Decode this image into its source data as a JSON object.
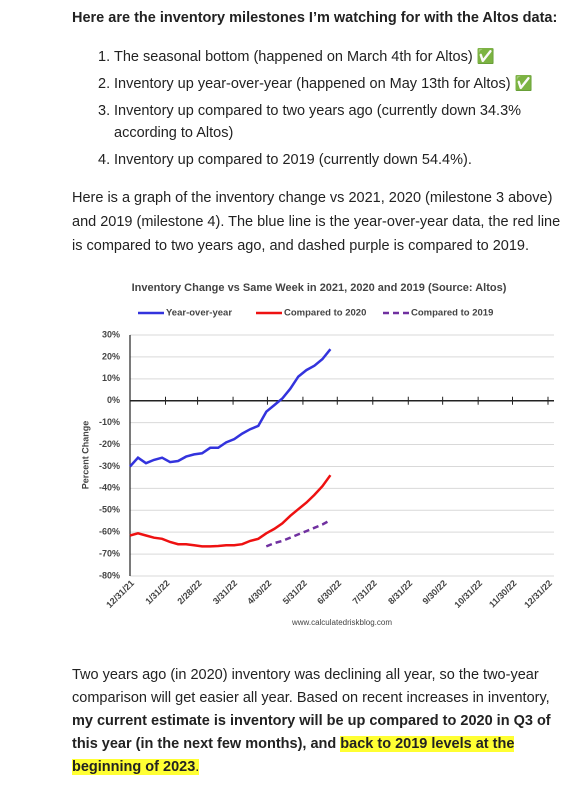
{
  "heading": "Here are the inventory milestones I’m watching for with the Altos data:",
  "list": [
    {
      "marker": "1.",
      "text": "The seasonal bottom (happened on March 4th for Altos) ✅"
    },
    {
      "marker": "2.",
      "text": "Inventory up year-over-year (happened on May 13th for Altos) ✅"
    },
    {
      "marker": "3.",
      "text": "Inventory up compared to two years ago (currently down 34.3% according to Altos)"
    },
    {
      "marker": "4.",
      "text": "Inventory up compared to 2019 (currently down 54.4%)."
    }
  ],
  "paragraph": "Here is a graph of the inventory change vs 2021, 2020 (milestone 3 above) and 2019 (milestone 4). The blue line is the year-over-year data, the red line is compared to two years ago, and dashed purple is compared to 2019.",
  "closing": [
    "Two years ago (in 2020) inventory was declining all year, so the two-year comparison will get easier all year.   Based on recent increases in inventory, ",
    "my current estimate is inventory will be up compared to 2020 in Q3 of this year (in the next few months), and ",
    "back to 2019 levels at the beginning of 2023",
    "."
  ],
  "chart_data": {
    "type": "line",
    "title": "Inventory Change vs Same Week in 2021, 2020 and 2019 (Source: Altos)",
    "y_label": "Percent Change",
    "source": "www.calculatedriskblog.com",
    "x": [
      "12/31/21",
      "1/7/22",
      "1/14/22",
      "1/21/22",
      "1/28/22",
      "2/4/22",
      "2/11/22",
      "2/18/22",
      "2/25/22",
      "3/4/22",
      "3/11/22",
      "3/18/22",
      "3/25/22",
      "4/1/22",
      "4/8/22",
      "4/15/22",
      "4/22/22",
      "4/29/22",
      "5/6/22",
      "5/13/22",
      "5/20/22",
      "5/27/22",
      "6/3/22",
      "6/10/22",
      "6/17/22",
      "6/24/22"
    ],
    "series": [
      {
        "name": "Year-over-year",
        "color": "#3333dd",
        "dashed": false,
        "values": [
          -30,
          -26,
          -28.5,
          -27,
          -26,
          -28,
          -27.5,
          -25.5,
          -24.5,
          -24,
          -21.5,
          -21.5,
          -19,
          -17.5,
          -15,
          -13,
          -11.5,
          -5,
          -2,
          1,
          5.5,
          11,
          14,
          16,
          19,
          23.5
        ]
      },
      {
        "name": "Compared to 2020",
        "color": "#ee1111",
        "dashed": false,
        "values": [
          -61.5,
          -60.5,
          -61.5,
          -62.5,
          -63,
          -64.5,
          -65.5,
          -65.5,
          -66,
          -66.5,
          -66.5,
          -66.3,
          -66,
          -66,
          -65.5,
          -64,
          -63,
          -60.5,
          -58.5,
          -56,
          -52.5,
          -49.5,
          -46.5,
          -43,
          -39,
          -34
        ]
      },
      {
        "name": "Compared to 2019",
        "color": "#7030a0",
        "dashed": true,
        "values": [
          null,
          null,
          null,
          null,
          null,
          null,
          null,
          null,
          null,
          null,
          null,
          null,
          null,
          null,
          null,
          null,
          null,
          -66.5,
          -65,
          -64,
          -62.5,
          -61,
          -59.5,
          -58,
          -56.5,
          -54.5
        ]
      }
    ],
    "xlim": [
      "12/31/21",
      "12/31/22"
    ],
    "xticks": [
      "12/31/21",
      "1/31/22",
      "2/28/22",
      "3/31/22",
      "4/30/22",
      "5/31/22",
      "6/30/22",
      "7/31/22",
      "8/31/22",
      "9/30/22",
      "10/31/22",
      "11/30/22",
      "12/31/22"
    ],
    "ylim": [
      -80,
      30
    ],
    "yticks": [
      {
        "value": 30,
        "label": "30%"
      },
      {
        "value": 20,
        "label": "20%"
      },
      {
        "value": 10,
        "label": "10%"
      },
      {
        "value": 0,
        "label": "0%"
      },
      {
        "value": -10,
        "label": "-10%"
      },
      {
        "value": -20,
        "label": "-20%"
      },
      {
        "value": -30,
        "label": "-30%"
      },
      {
        "value": -40,
        "label": "-40%"
      },
      {
        "value": -50,
        "label": "-50%"
      },
      {
        "value": -60,
        "label": "-60%"
      },
      {
        "value": -70,
        "label": "-70%"
      },
      {
        "value": -80,
        "label": "-80%"
      }
    ],
    "grid": true,
    "legend": "top"
  }
}
